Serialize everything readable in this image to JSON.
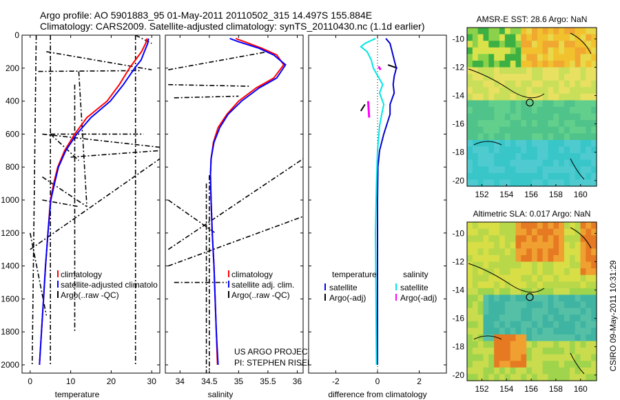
{
  "header": {
    "line1": "Argo profile: AO 5901883_95 01-May-2011 20110502_315 14.497S 155.884E",
    "line2": "Climatology: CARS2009. Satellite-adjusted climatology: synTS_20110430.nc (1.1d earlier)"
  },
  "chart_data": [
    {
      "type": "line",
      "name": "temperature-profile",
      "xlabel": "temperature",
      "ylabel": "",
      "xlim": [
        -2,
        32
      ],
      "ylim": [
        2050,
        0
      ],
      "xticks": [
        "0",
        "10",
        "20",
        "30"
      ],
      "yticks": [
        "0",
        "200",
        "400",
        "600",
        "800",
        "1000",
        "1200",
        "1400",
        "1600",
        "1800",
        "2000"
      ],
      "legend": [
        "climatology",
        "satellite-adjusted climatolo",
        "Argo(..raw -QC)"
      ],
      "series": [
        {
          "name": "climatology",
          "color": "#ff0000",
          "points": [
            [
              28.8,
              20
            ],
            [
              28.5,
              50
            ],
            [
              27.5,
              100
            ],
            [
              26,
              150
            ],
            [
              24.5,
              200
            ],
            [
              22,
              300
            ],
            [
              19,
              400
            ],
            [
              14,
              500
            ],
            [
              11,
              600
            ],
            [
              8.5,
              700
            ],
            [
              6.8,
              800
            ],
            [
              5.8,
              900
            ],
            [
              5,
              1000
            ],
            [
              4.4,
              1200
            ],
            [
              3.8,
              1400
            ],
            [
              3.3,
              1600
            ],
            [
              2.8,
              1800
            ],
            [
              2.3,
              2000
            ]
          ]
        },
        {
          "name": "satellite-adjusted",
          "color": "#0000ff",
          "points": [
            [
              29.2,
              20
            ],
            [
              29,
              50
            ],
            [
              28.2,
              100
            ],
            [
              27.4,
              150
            ],
            [
              25.8,
              200
            ],
            [
              23,
              300
            ],
            [
              19.8,
              400
            ],
            [
              15,
              500
            ],
            [
              11.5,
              600
            ],
            [
              8.8,
              700
            ],
            [
              7,
              800
            ],
            [
              6,
              900
            ],
            [
              5.1,
              1000
            ],
            [
              4.4,
              1200
            ],
            [
              3.8,
              1400
            ],
            [
              3.3,
              1600
            ],
            [
              2.8,
              1800
            ],
            [
              2.3,
              2000
            ]
          ]
        }
      ],
      "argo_segments": [
        [
          [
            1.5,
            0
          ],
          [
            0.5,
            2000
          ]
        ],
        [
          [
            4,
            100
          ],
          [
            30,
            210
          ]
        ],
        [
          [
            2,
            220
          ],
          [
            27,
            215
          ]
        ],
        [
          [
            26,
            0
          ],
          [
            26,
            2000
          ]
        ],
        [
          [
            12,
            220
          ],
          [
            14,
            1040
          ]
        ],
        [
          [
            5,
            600
          ],
          [
            28,
            600
          ]
        ],
        [
          [
            3,
            600
          ],
          [
            32,
            680
          ]
        ],
        [
          [
            5,
            600
          ],
          [
            12,
            760
          ]
        ],
        [
          [
            10,
            740
          ],
          [
            32,
            700
          ]
        ],
        [
          [
            3,
            860
          ],
          [
            14,
            1040
          ]
        ],
        [
          [
            3,
            1000
          ],
          [
            12,
            1040
          ]
        ],
        [
          [
            5,
            0
          ],
          [
            5,
            2000
          ]
        ],
        [
          [
            11,
            300
          ],
          [
            11,
            1800
          ]
        ],
        [
          [
            26,
            0
          ],
          [
            30,
            50
          ]
        ],
        [
          [
            0,
            1300
          ],
          [
            32,
            750
          ]
        ],
        [
          [
            0,
            1200
          ],
          [
            4,
            1700
          ]
        ]
      ]
    },
    {
      "type": "line",
      "name": "salinity-profile",
      "xlabel": "salinity",
      "xlim": [
        33.75,
        36.1
      ],
      "ylim": [
        2050,
        0
      ],
      "xticks": [
        "34",
        "34.5",
        "35",
        "35.5",
        "36"
      ],
      "legend": [
        "climatology",
        "satellite adj. clim.",
        "Argo(..raw -QC)"
      ],
      "annotation": [
        "US ARGO PROJECT",
        "PI: STEPHEN RISER"
      ],
      "series": [
        {
          "name": "climatology",
          "color": "#ff0000",
          "points": [
            [
              34.95,
              20
            ],
            [
              35.1,
              40
            ],
            [
              35.4,
              80
            ],
            [
              35.65,
              120
            ],
            [
              35.77,
              180
            ],
            [
              35.6,
              260
            ],
            [
              35.3,
              320
            ],
            [
              35,
              400
            ],
            [
              34.8,
              480
            ],
            [
              34.65,
              560
            ],
            [
              34.57,
              650
            ],
            [
              34.53,
              750
            ],
            [
              34.52,
              850
            ],
            [
              34.53,
              1000
            ],
            [
              34.55,
              1200
            ],
            [
              34.58,
              1400
            ],
            [
              34.6,
              1600
            ],
            [
              34.62,
              1800
            ],
            [
              34.64,
              2000
            ]
          ]
        },
        {
          "name": "satellite adj. clim.",
          "color": "#0000ff",
          "points": [
            [
              34.85,
              20
            ],
            [
              35.0,
              40
            ],
            [
              35.35,
              80
            ],
            [
              35.6,
              120
            ],
            [
              35.8,
              180
            ],
            [
              35.65,
              260
            ],
            [
              35.35,
              320
            ],
            [
              35.05,
              400
            ],
            [
              34.82,
              480
            ],
            [
              34.68,
              560
            ],
            [
              34.58,
              650
            ],
            [
              34.53,
              750
            ],
            [
              34.52,
              850
            ],
            [
              34.53,
              1000
            ],
            [
              34.55,
              1200
            ],
            [
              34.58,
              1400
            ],
            [
              34.6,
              1600
            ],
            [
              34.62,
              1800
            ],
            [
              34.65,
              2000
            ]
          ]
        }
      ],
      "argo_segments": [
        [
          [
            34.5,
            850
          ],
          [
            34.5,
            2050
          ]
        ],
        [
          [
            34.45,
            900
          ],
          [
            34.45,
            2050
          ]
        ],
        [
          [
            33.8,
            210
          ],
          [
            35.5,
            100
          ]
        ],
        [
          [
            33.9,
            380
          ],
          [
            35.0,
            370
          ]
        ],
        [
          [
            33.8,
            300
          ],
          [
            35.2,
            310
          ]
        ],
        [
          [
            33.8,
            1000
          ],
          [
            34.6,
            1200
          ]
        ],
        [
          [
            33.8,
            1300
          ],
          [
            36.1,
            750
          ]
        ],
        [
          [
            33.9,
            1500
          ],
          [
            34.8,
            1500
          ]
        ],
        [
          [
            33.8,
            1400
          ],
          [
            36.1,
            1100
          ]
        ]
      ]
    },
    {
      "type": "line",
      "name": "difference-profile",
      "xlabel": "difference from climatology",
      "xlim": [
        -3.3,
        3.3
      ],
      "ylim": [
        2050,
        0
      ],
      "xticks": [
        "-2",
        "0",
        "2"
      ],
      "legend_groups": [
        {
          "title": "temperature",
          "items": [
            "satellite",
            "Argo(-adj)"
          ]
        },
        {
          "title": "salinity",
          "items": [
            "satellite",
            "Argo(-adj)"
          ]
        }
      ],
      "series": [
        {
          "name": "temperature satellite",
          "color": "#0000cc",
          "points": [
            [
              0.4,
              20
            ],
            [
              0.6,
              50
            ],
            [
              0.7,
              100
            ],
            [
              0.8,
              150
            ],
            [
              0.9,
              200
            ],
            [
              0.8,
              250
            ],
            [
              0.75,
              300
            ],
            [
              0.8,
              350
            ],
            [
              0.6,
              420
            ],
            [
              0.6,
              480
            ],
            [
              0.55,
              500
            ],
            [
              0.3,
              600
            ],
            [
              0.1,
              700
            ],
            [
              0.02,
              800
            ],
            [
              0,
              1000
            ],
            [
              0,
              1400
            ],
            [
              0,
              2000
            ]
          ]
        },
        {
          "name": "salinity satellite",
          "color": "#00e5e5",
          "points": [
            [
              -0.1,
              20
            ],
            [
              -0.6,
              50
            ],
            [
              -0.8,
              70
            ],
            [
              -0.5,
              100
            ],
            [
              -0.3,
              150
            ],
            [
              -0.2,
              200
            ],
            [
              0.25,
              300
            ],
            [
              0.1,
              350
            ],
            [
              0.3,
              420
            ],
            [
              0.2,
              480
            ],
            [
              0.1,
              550
            ],
            [
              0,
              700
            ],
            [
              -0.05,
              900
            ],
            [
              -0.1,
              1200
            ],
            [
              -0.08,
              1500
            ],
            [
              -0.05,
              2000
            ]
          ]
        }
      ],
      "argo_temp_segments": [
        [
          [
            -0.8,
            460
          ],
          [
            -0.6,
            420
          ]
        ],
        [
          [
            0.5,
            180
          ],
          [
            0.95,
            200
          ]
        ]
      ],
      "argo_sal_segments": [
        [
          [
            -0.45,
            400
          ],
          [
            -0.4,
            500
          ]
        ],
        [
          [
            0.05,
            190
          ],
          [
            0.15,
            210
          ]
        ]
      ]
    }
  ],
  "maps": [
    {
      "title": "AMSR-E SST: 28.6  Argo: NaN",
      "yticks": [
        "-10",
        "-12",
        "-14",
        "-16",
        "-18",
        "-20"
      ],
      "xticks": [
        "152",
        "154",
        "156",
        "158",
        "160"
      ]
    },
    {
      "title": "Altimetric SLA: 0.017  Argo: NaN",
      "yticks": [
        "-10",
        "-12",
        "-14",
        "-16",
        "-18",
        "-20"
      ],
      "xticks": [
        "152",
        "154",
        "156",
        "158",
        "160"
      ]
    }
  ],
  "footer": {
    "credit": "CSIRO 09-May-2011 10:31:29"
  },
  "colors": {
    "climatology": "#ff0000",
    "satellite": "#0000ff",
    "argo": "#000000",
    "salinity_satellite": "#00e5e5",
    "salinity_argo": "#ff00ff"
  }
}
